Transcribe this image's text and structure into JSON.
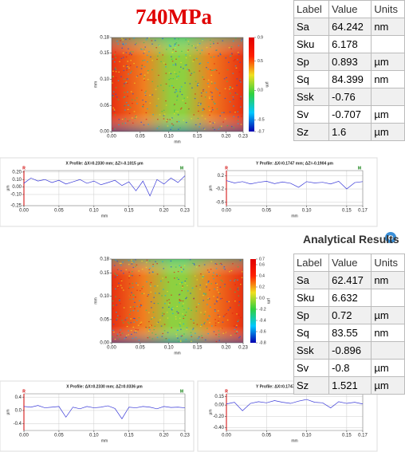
{
  "title": "740MPa",
  "heading": "Analytical Results",
  "tables": [
    {
      "columns": [
        "Label",
        "Value",
        "Units"
      ],
      "rows": [
        {
          "label": "Sa",
          "value": 64.242,
          "unit": "nm"
        },
        {
          "label": "Sku",
          "value": 6.178
        },
        {
          "label": "Sp",
          "value": 0.893,
          "unit": "µm"
        },
        {
          "label": "Sq",
          "value": 84.399,
          "unit": "nm"
        },
        {
          "label": "Ssk",
          "value": -0.76
        },
        {
          "label": "Sv",
          "value": -0.707,
          "unit": "µm"
        },
        {
          "label": "Sz",
          "value": 1.6,
          "unit": "µm"
        }
      ]
    },
    {
      "columns": [
        "Label",
        "Value",
        "Units"
      ],
      "rows": [
        {
          "label": "Sa",
          "value": 62.417,
          "unit": "nm"
        },
        {
          "label": "Sku",
          "value": 6.632
        },
        {
          "label": "Sp",
          "value": 0.72,
          "unit": "µm"
        },
        {
          "label": "Sq",
          "value": 83.55,
          "unit": "nm"
        },
        {
          "label": "Ssk",
          "value": -0.896
        },
        {
          "label": "Sv",
          "value": -0.8,
          "unit": "µm"
        },
        {
          "label": "Sz",
          "value": 1.521,
          "unit": "µm"
        }
      ]
    }
  ],
  "chart_data": [
    {
      "type": "heatmap",
      "xlabel": "mm",
      "ylabel": "mm",
      "xlim": [
        0,
        0.23
      ],
      "ylim": [
        0,
        0.18
      ],
      "xticks": [
        {
          "value": 0,
          "label": "0.00"
        },
        0.05,
        {
          "value": 0.1,
          "label": "0.10"
        },
        0.15,
        {
          "value": 0.2,
          "label": "0.20"
        },
        0.23
      ],
      "yticks": [
        {
          "value": 0,
          "label": "0.00"
        },
        0.05,
        {
          "value": 0.1,
          "label": "0.10"
        },
        0.15,
        0.18
      ],
      "colorbar": {
        "label": "µm",
        "lim": [
          -0.7,
          0.9
        ],
        "ticks": [
          0.9,
          0.5,
          {
            "value": 0,
            "label": "0.0"
          },
          -0.5,
          -0.7
        ],
        "colors": [
          "#0000b0",
          "#00c8ff",
          "#30d040",
          "#f0e020",
          "#ff2000",
          "#e00000"
        ]
      }
    },
    {
      "type": "line",
      "title": "X Profile: ΔX=0.2330 mm; ΔZ=-0.1015 µm",
      "annotations": [
        "R",
        "M"
      ],
      "xlabel": "mm",
      "ylabel": "µm",
      "xlim": [
        0,
        0.23
      ],
      "ylim": [
        -0.25,
        0.22
      ],
      "xticks": [
        {
          "value": 0,
          "label": "0.00"
        },
        0.05,
        {
          "value": 0.1,
          "label": "0.10"
        },
        0.15,
        {
          "value": 0.2,
          "label": "0.20"
        },
        0.23
      ],
      "yticks": [
        {
          "value": 0.2,
          "label": "0.20"
        },
        {
          "value": 0.1,
          "label": "0.10"
        },
        {
          "value": 0,
          "label": "0.00"
        },
        {
          "value": -0.1,
          "label": "-0.10"
        },
        -0.25
      ],
      "series": [
        {
          "color": "#3a3ad8",
          "x": [
            0,
            0.01,
            0.02,
            0.03,
            0.04,
            0.05,
            0.06,
            0.07,
            0.08,
            0.09,
            0.1,
            0.11,
            0.12,
            0.13,
            0.14,
            0.15,
            0.16,
            0.17,
            0.18,
            0.19,
            0.2,
            0.21,
            0.22,
            0.23
          ],
          "values": [
            0.05,
            0.12,
            0.08,
            0.1,
            0.06,
            0.09,
            0.04,
            0.07,
            0.1,
            0.05,
            0.08,
            0.03,
            0.06,
            0.09,
            0.02,
            0.07,
            -0.05,
            0.08,
            -0.12,
            0.1,
            0.04,
            0.12,
            0.06,
            0.15
          ]
        }
      ]
    },
    {
      "type": "line",
      "title": "Y Profile: ΔX=0.1747 mm; ΔZ=-0.1904 µm",
      "annotations": [
        "R",
        "M"
      ],
      "xlabel": "mm",
      "ylabel": "µm",
      "xlim": [
        0,
        0.17
      ],
      "ylim": [
        -0.7,
        0.35
      ],
      "xticks": [
        {
          "value": 0,
          "label": "0.00"
        },
        0.05,
        {
          "value": 0.1,
          "label": "0.10"
        },
        0.15,
        0.17
      ],
      "yticks": [
        0.2,
        -0.2,
        -0.6
      ],
      "series": [
        {
          "color": "#3a3ad8",
          "x": [
            0,
            0.01,
            0.02,
            0.03,
            0.04,
            0.05,
            0.06,
            0.07,
            0.08,
            0.09,
            0.1,
            0.11,
            0.12,
            0.13,
            0.14,
            0.15,
            0.16,
            0.17
          ],
          "values": [
            0.05,
            -0.02,
            0.02,
            -0.05,
            0,
            0.03,
            -0.04,
            0.01,
            -0.03,
            -0.15,
            0.02,
            -0.02,
            0,
            -0.05,
            0.03,
            -0.2,
            -0.01,
            0.02
          ]
        }
      ]
    },
    {
      "type": "heatmap",
      "xlabel": "mm",
      "ylabel": "mm",
      "xlim": [
        0,
        0.23
      ],
      "ylim": [
        0,
        0.18
      ],
      "xticks": [
        {
          "value": 0,
          "label": "0.00"
        },
        0.05,
        {
          "value": 0.1,
          "label": "0.10"
        },
        0.15,
        {
          "value": 0.2,
          "label": "0.20"
        },
        0.23
      ],
      "yticks": [
        {
          "value": 0,
          "label": "0.00"
        },
        0.05,
        {
          "value": 0.1,
          "label": "0.10"
        },
        0.15,
        0.18
      ],
      "colorbar": {
        "label": "µm",
        "lim": [
          -0.8,
          0.7
        ],
        "ticks": [
          0.7,
          0.6,
          0.4,
          0.2,
          {
            "value": 0,
            "label": "0.0"
          },
          -0.2,
          -0.4,
          -0.6,
          -0.8
        ],
        "colors": [
          "#0000b0",
          "#00c8ff",
          "#30d040",
          "#f0e020",
          "#ff2000",
          "#e00000"
        ]
      }
    },
    {
      "type": "line",
      "title": "X Profile: ΔX=0.2330 mm; ΔZ=0.0336 µm",
      "annotations": [
        "R",
        "M"
      ],
      "xlabel": "mm",
      "ylabel": "µm",
      "xlim": [
        0,
        0.23
      ],
      "ylim": [
        -0.6,
        0.5
      ],
      "xticks": [
        {
          "value": 0,
          "label": "0.00"
        },
        0.05,
        {
          "value": 0.1,
          "label": "0.10"
        },
        0.15,
        {
          "value": 0.2,
          "label": "0.20"
        },
        0.23
      ],
      "yticks": [
        0.4,
        {
          "value": 0,
          "label": "0.0"
        },
        -0.4
      ],
      "series": [
        {
          "color": "#3a3ad8",
          "x": [
            0,
            0.01,
            0.02,
            0.03,
            0.04,
            0.05,
            0.06,
            0.07,
            0.08,
            0.09,
            0.1,
            0.11,
            0.12,
            0.13,
            0.14,
            0.15,
            0.16,
            0.17,
            0.18,
            0.19,
            0.2,
            0.21,
            0.22,
            0.23
          ],
          "values": [
            0.12,
            0.1,
            0.15,
            0.08,
            0.1,
            0.12,
            -0.2,
            0.1,
            0.05,
            0.12,
            0.08,
            0.1,
            0.14,
            0.06,
            -0.25,
            0.1,
            0.08,
            0.12,
            0.1,
            0.05,
            0.12,
            0.09,
            0.1,
            0.08
          ]
        }
      ]
    },
    {
      "type": "line",
      "title": "Y Profile: ΔX=0.1747 mm; ΔZ=-0.0083 µm",
      "annotations": [
        "R",
        "M"
      ],
      "xlabel": "mm",
      "ylabel": "µm",
      "xlim": [
        0,
        0.17
      ],
      "ylim": [
        -0.45,
        0.2
      ],
      "xticks": [
        {
          "value": 0,
          "label": "0.00"
        },
        0.05,
        {
          "value": 0.1,
          "label": "0.10"
        },
        0.15,
        0.17
      ],
      "yticks": [
        0.15,
        {
          "value": 0,
          "label": "0.00"
        },
        {
          "value": -0.2,
          "label": "-0.20"
        },
        {
          "value": -0.4,
          "label": "-0.40"
        }
      ],
      "series": [
        {
          "color": "#3a3ad8",
          "x": [
            0,
            0.01,
            0.02,
            0.03,
            0.04,
            0.05,
            0.06,
            0.07,
            0.08,
            0.09,
            0.1,
            0.11,
            0.12,
            0.13,
            0.14,
            0.15,
            0.16,
            0.17
          ],
          "values": [
            0.02,
            0.05,
            -0.1,
            0.03,
            0.06,
            0.04,
            0.08,
            0.05,
            0.03,
            0.07,
            0.1,
            0.05,
            0.04,
            -0.05,
            0.06,
            0.03,
            0.05,
            0.02
          ]
        }
      ]
    }
  ]
}
